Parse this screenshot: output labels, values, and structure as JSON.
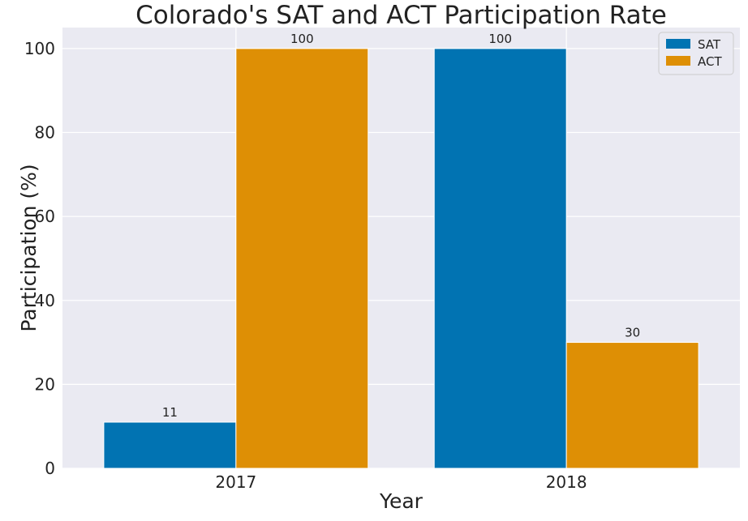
{
  "chart_data": {
    "type": "bar",
    "title": "Colorado's SAT and ACT Participation Rate",
    "xlabel": "Year",
    "ylabel": "Participation (%)",
    "categories": [
      "2017",
      "2018"
    ],
    "series": [
      {
        "name": "SAT",
        "values": [
          11,
          100
        ],
        "color": "#0173b2"
      },
      {
        "name": "ACT",
        "values": [
          100,
          30
        ],
        "color": "#de8f05"
      }
    ],
    "ylim": [
      0,
      105
    ],
    "yticks": [
      0,
      20,
      40,
      60,
      80,
      100
    ],
    "data_labels": [
      [
        "11",
        "100"
      ],
      [
        "100",
        "30"
      ]
    ],
    "grid": true,
    "legend_position": "top-right",
    "background": "#eaeaf2"
  }
}
